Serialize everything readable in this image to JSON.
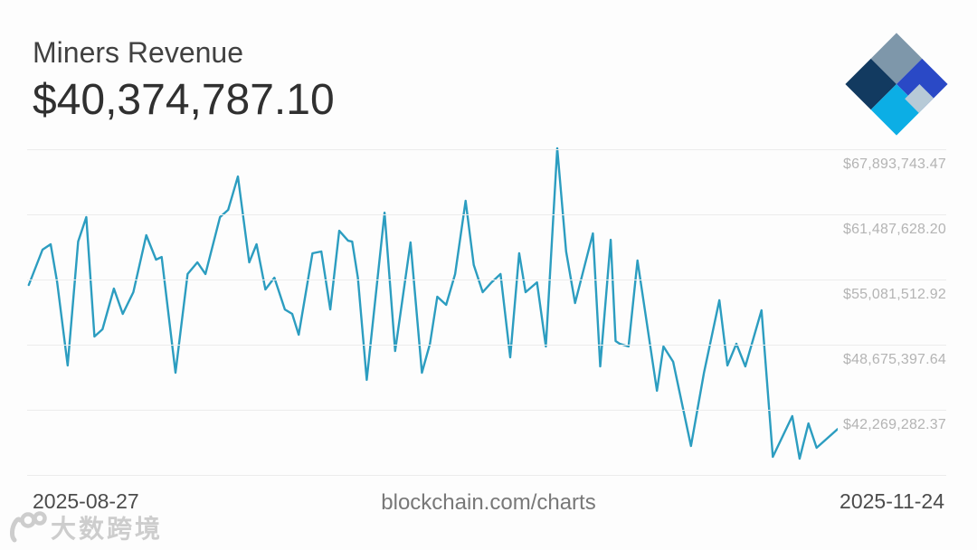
{
  "header": {
    "title": "Miners Revenue",
    "current_value": "$40,374,787.10"
  },
  "logo": {
    "name": "blockchain.com diamond logo",
    "colors": {
      "slate": "#7e97aa",
      "navy": "#123a60",
      "royal_blue": "#2a49c6",
      "cyan": "#0caee5",
      "light": "#b7cad7"
    }
  },
  "chart_data": {
    "type": "line",
    "title": "Miners Revenue",
    "current_value_usd": 40374787.1,
    "x_start": "2025-08-27",
    "x_end": "2025-11-24",
    "line_color": "#2c9dc0",
    "grid": "horizontal only",
    "legend": "none",
    "y_axis": {
      "side": "right",
      "tick_labels": [
        "$67,893,743.47",
        "$61,487,628.20",
        "$55,081,512.92",
        "$48,675,397.64",
        "$42,269,282.37",
        ""
      ],
      "gridline_values": [
        67893743.47,
        61487628.2,
        55081512.92,
        48675397.64,
        42269282.37,
        35863167.1
      ],
      "tick_step": 6406115.27
    },
    "points_note": "x is fraction of time axis between x_start and x_end, v is USD revenue",
    "points": [
      {
        "x": 0.002,
        "v": 54550000
      },
      {
        "x": 0.019,
        "v": 58020000
      },
      {
        "x": 0.029,
        "v": 58550000
      },
      {
        "x": 0.037,
        "v": 54810000
      },
      {
        "x": 0.05,
        "v": 46630000
      },
      {
        "x": 0.063,
        "v": 58820000
      },
      {
        "x": 0.073,
        "v": 61220000
      },
      {
        "x": 0.083,
        "v": 49480000
      },
      {
        "x": 0.093,
        "v": 50190000
      },
      {
        "x": 0.107,
        "v": 54190000
      },
      {
        "x": 0.118,
        "v": 51700000
      },
      {
        "x": 0.131,
        "v": 53840000
      },
      {
        "x": 0.147,
        "v": 59440000
      },
      {
        "x": 0.159,
        "v": 57040000
      },
      {
        "x": 0.166,
        "v": 57300000
      },
      {
        "x": 0.183,
        "v": 45920000
      },
      {
        "x": 0.198,
        "v": 55620000
      },
      {
        "x": 0.21,
        "v": 56770000
      },
      {
        "x": 0.22,
        "v": 55620000
      },
      {
        "x": 0.238,
        "v": 61220000
      },
      {
        "x": 0.248,
        "v": 61930000
      },
      {
        "x": 0.26,
        "v": 65220000
      },
      {
        "x": 0.274,
        "v": 56770000
      },
      {
        "x": 0.283,
        "v": 58550000
      },
      {
        "x": 0.294,
        "v": 54100000
      },
      {
        "x": 0.305,
        "v": 55260000
      },
      {
        "x": 0.318,
        "v": 52140000
      },
      {
        "x": 0.327,
        "v": 51700000
      },
      {
        "x": 0.335,
        "v": 49650000
      },
      {
        "x": 0.352,
        "v": 57660000
      },
      {
        "x": 0.363,
        "v": 57840000
      },
      {
        "x": 0.374,
        "v": 52140000
      },
      {
        "x": 0.385,
        "v": 59880000
      },
      {
        "x": 0.396,
        "v": 58900000
      },
      {
        "x": 0.401,
        "v": 58810000
      },
      {
        "x": 0.408,
        "v": 55260000
      },
      {
        "x": 0.419,
        "v": 45210000
      },
      {
        "x": 0.441,
        "v": 61660000
      },
      {
        "x": 0.454,
        "v": 48050000
      },
      {
        "x": 0.473,
        "v": 58730000
      },
      {
        "x": 0.487,
        "v": 45920000
      },
      {
        "x": 0.497,
        "v": 48760000
      },
      {
        "x": 0.506,
        "v": 53390000
      },
      {
        "x": 0.517,
        "v": 52590000
      },
      {
        "x": 0.528,
        "v": 55620000
      },
      {
        "x": 0.541,
        "v": 62820000
      },
      {
        "x": 0.551,
        "v": 56510000
      },
      {
        "x": 0.562,
        "v": 53840000
      },
      {
        "x": 0.573,
        "v": 54810000
      },
      {
        "x": 0.584,
        "v": 55620000
      },
      {
        "x": 0.596,
        "v": 47430000
      },
      {
        "x": 0.607,
        "v": 57660000
      },
      {
        "x": 0.615,
        "v": 53840000
      },
      {
        "x": 0.629,
        "v": 54810000
      },
      {
        "x": 0.64,
        "v": 48500000
      },
      {
        "x": 0.654,
        "v": 67980000
      },
      {
        "x": 0.665,
        "v": 57840000
      },
      {
        "x": 0.676,
        "v": 52770000
      },
      {
        "x": 0.698,
        "v": 59620000
      },
      {
        "x": 0.707,
        "v": 46540000
      },
      {
        "x": 0.72,
        "v": 58990000
      },
      {
        "x": 0.726,
        "v": 49030000
      },
      {
        "x": 0.731,
        "v": 48760000
      },
      {
        "x": 0.742,
        "v": 48500000
      },
      {
        "x": 0.753,
        "v": 56950000
      },
      {
        "x": 0.777,
        "v": 44140000
      },
      {
        "x": 0.785,
        "v": 48500000
      },
      {
        "x": 0.797,
        "v": 46990000
      },
      {
        "x": 0.819,
        "v": 38710000
      },
      {
        "x": 0.835,
        "v": 45920000
      },
      {
        "x": 0.854,
        "v": 53040000
      },
      {
        "x": 0.864,
        "v": 46630000
      },
      {
        "x": 0.875,
        "v": 48760000
      },
      {
        "x": 0.886,
        "v": 46540000
      },
      {
        "x": 0.906,
        "v": 52060000
      },
      {
        "x": 0.92,
        "v": 37640000
      },
      {
        "x": 0.944,
        "v": 41650000
      },
      {
        "x": 0.953,
        "v": 37460000
      },
      {
        "x": 0.964,
        "v": 40930000
      },
      {
        "x": 0.974,
        "v": 38530000
      },
      {
        "x": 0.984,
        "v": 39240000
      },
      {
        "x": 1.0,
        "v": 40374787.1
      }
    ]
  },
  "footer": {
    "date_start": "2025-08-27",
    "source": "blockchain.com/charts",
    "date_end": "2025-11-24"
  },
  "watermark": {
    "text": "大数跨境"
  }
}
